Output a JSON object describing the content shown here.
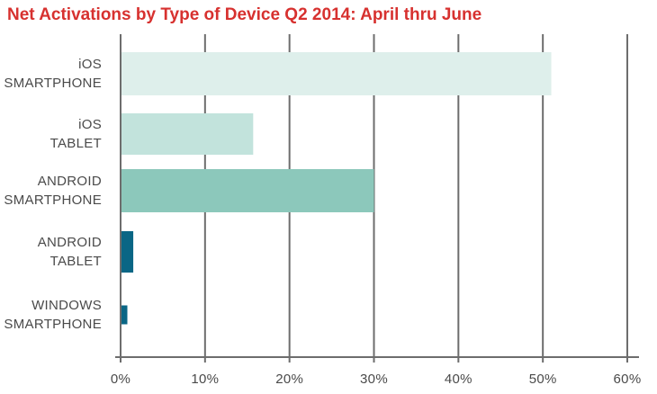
{
  "chart_data": {
    "type": "bar",
    "orientation": "horizontal",
    "title": "Net Activations by Type of Device Q2 2014: April thru June",
    "xlabel": "",
    "ylabel": "",
    "xlim": [
      0,
      60
    ],
    "x_ticks": [
      0,
      10,
      20,
      30,
      40,
      50,
      60
    ],
    "x_tick_labels": [
      "0%",
      "10%",
      "20%",
      "30%",
      "40%",
      "50%",
      "60%"
    ],
    "grid": "vertical",
    "legend": "none",
    "categories": [
      [
        "iOS",
        "SMARTPHONE"
      ],
      [
        "iOS",
        "TABLET"
      ],
      [
        "ANDROID",
        "SMARTPHONE"
      ],
      [
        "ANDROID",
        "TABLET"
      ],
      [
        "WINDOWS",
        "SMARTPHONE"
      ]
    ],
    "values": [
      51,
      15.7,
      30,
      1.5,
      0.8
    ],
    "colors": [
      "#deefeb",
      "#c2e3dc",
      "#8cc8bb",
      "#0a6685",
      "#0a6685"
    ],
    "text_color": "#4a4a4a",
    "grid_color": "#6d6d6d",
    "title_color": "#d7312f"
  }
}
